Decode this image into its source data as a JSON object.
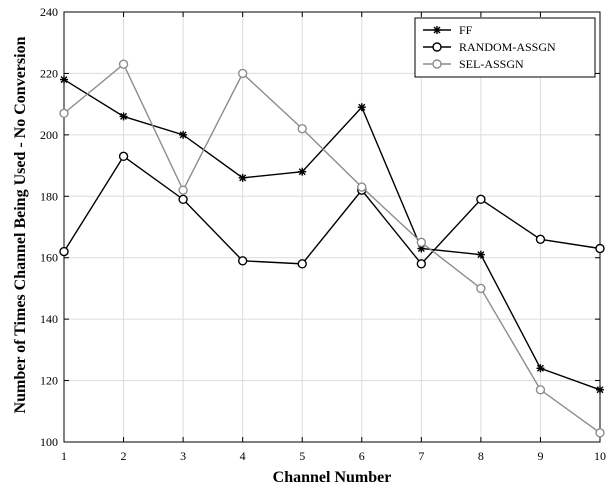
{
  "chart_data": {
    "type": "line",
    "xlabel": "Channel Number",
    "ylabel": "Number of Times Channel Being Used - No Conversion",
    "x": [
      1,
      2,
      3,
      4,
      5,
      6,
      7,
      8,
      9,
      10
    ],
    "xlim": [
      1,
      10
    ],
    "ylim": [
      100,
      240
    ],
    "xticks": [
      "1",
      "2",
      "3",
      "4",
      "5",
      "6",
      "7",
      "8",
      "9",
      "10"
    ],
    "yticks": [
      "100",
      "120",
      "140",
      "160",
      "180",
      "200",
      "220",
      "240"
    ],
    "grid": true,
    "legend_position": "top-right",
    "series": [
      {
        "name": "FF",
        "marker": "star",
        "color": "#000000",
        "values": [
          218,
          206,
          200,
          186,
          188,
          209,
          163,
          161,
          124,
          117
        ]
      },
      {
        "name": "RANDOM-ASSGN",
        "marker": "circle",
        "color": "#000000",
        "values": [
          162,
          193,
          179,
          159,
          158,
          182,
          158,
          179,
          166,
          163
        ]
      },
      {
        "name": "SEL-ASSGN",
        "marker": "circle",
        "color": "#8c8c8c",
        "values": [
          207,
          223,
          182,
          220,
          202,
          183,
          165,
          150,
          117,
          103
        ]
      }
    ]
  }
}
